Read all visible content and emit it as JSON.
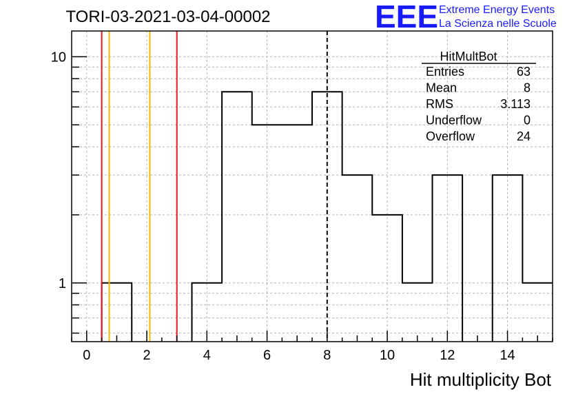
{
  "title": "TORI-03-2021-03-04-00002",
  "logo": {
    "mark": "EEE",
    "line1": "Extreme Energy Events",
    "line2": "La Scienza nelle Scuole",
    "color": "#1a1aff"
  },
  "stats": {
    "name": "HitMultBot",
    "rows": [
      {
        "label": "Entries",
        "value": "63"
      },
      {
        "label": "Mean",
        "value": "8"
      },
      {
        "label": "RMS",
        "value": "3.113"
      },
      {
        "label": "Underflow",
        "value": "0"
      },
      {
        "label": "Overflow",
        "value": "24"
      }
    ]
  },
  "chart_data": {
    "type": "histogram",
    "xlabel": "Hit multiplicity Bot",
    "ylabel": "",
    "xlim": [
      -0.5,
      15.5
    ],
    "ylim": [
      0.55,
      13
    ],
    "yscale": "log",
    "grid": true,
    "bins": [
      {
        "low": -0.5,
        "high": 0.5,
        "count": 0
      },
      {
        "low": 0.5,
        "high": 1.5,
        "count": 1
      },
      {
        "low": 1.5,
        "high": 2.5,
        "count": 0
      },
      {
        "low": 2.5,
        "high": 3.5,
        "count": 0
      },
      {
        "low": 3.5,
        "high": 4.5,
        "count": 1
      },
      {
        "low": 4.5,
        "high": 5.5,
        "count": 7
      },
      {
        "low": 5.5,
        "high": 6.5,
        "count": 5
      },
      {
        "low": 6.5,
        "high": 7.5,
        "count": 5
      },
      {
        "low": 7.5,
        "high": 8.5,
        "count": 7
      },
      {
        "low": 8.5,
        "high": 9.5,
        "count": 3
      },
      {
        "low": 9.5,
        "high": 10.5,
        "count": 2
      },
      {
        "low": 10.5,
        "high": 11.5,
        "count": 1
      },
      {
        "low": 11.5,
        "high": 12.5,
        "count": 3
      },
      {
        "low": 12.5,
        "high": 13.5,
        "count": 0
      },
      {
        "low": 13.5,
        "high": 14.5,
        "count": 3
      },
      {
        "low": 14.5,
        "high": 15.5,
        "count": 1
      }
    ],
    "xticks": [
      0,
      2,
      4,
      6,
      8,
      10,
      12,
      14
    ],
    "yticks": [
      1,
      10
    ],
    "vlines": [
      {
        "x": 0.5,
        "color": "#e8141c",
        "style": "solid"
      },
      {
        "x": 0.75,
        "color": "#f2b800",
        "style": "solid"
      },
      {
        "x": 2.1,
        "color": "#f2b800",
        "style": "solid"
      },
      {
        "x": 3.0,
        "color": "#e8141c",
        "style": "solid"
      },
      {
        "x": 8.0,
        "color": "#000000",
        "style": "dashed"
      }
    ]
  }
}
